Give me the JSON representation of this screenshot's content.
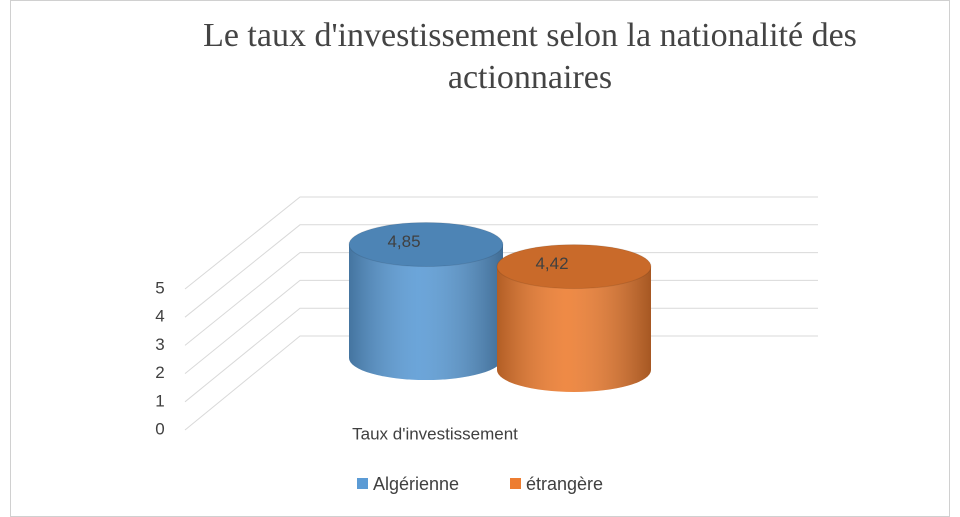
{
  "chart_data": {
    "type": "bar3d",
    "title_lines": [
      "Le taux d'investissement selon la nationalité des",
      "actionnaires"
    ],
    "categories": [
      "Taux d'investissement"
    ],
    "series": [
      {
        "name": "Algérienne",
        "color": "#5b9bd5",
        "values": [
          4.85
        ],
        "value_labels": [
          "4,85"
        ]
      },
      {
        "name": "étrangère",
        "color": "#ed7d31",
        "values": [
          4.42
        ],
        "value_labels": [
          "4,42"
        ]
      }
    ],
    "ylim": [
      0,
      5
    ],
    "yticks": [
      0,
      1,
      2,
      3,
      4,
      5
    ],
    "grid": true,
    "legend": "bottom"
  }
}
